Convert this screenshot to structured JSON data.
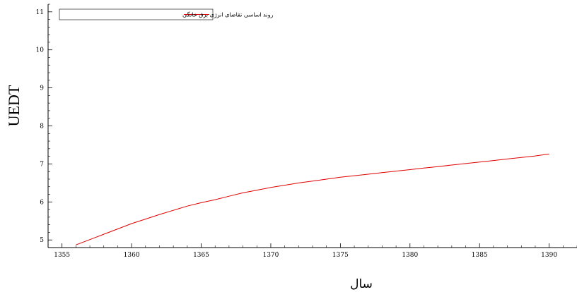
{
  "chart_data": {
    "type": "line",
    "xlabel": "سال",
    "ylabel": "UEDT",
    "xlim": [
      1354,
      1392
    ],
    "ylim": [
      4.8,
      11.2
    ],
    "xticks": [
      "1355",
      "1360",
      "1365",
      "1370",
      "1375",
      "1380",
      "1385",
      "1390"
    ],
    "yticks": [
      "5",
      "6",
      "7",
      "8",
      "9",
      "10",
      "11"
    ],
    "legend_position": "top-left",
    "grid": false,
    "series": [
      {
        "name": "روند اساسی تقاضای انرژی برق خانگی",
        "color": "#e00000",
        "x": [
          1356,
          1357,
          1358,
          1359,
          1360,
          1361,
          1362,
          1363,
          1364,
          1365,
          1366,
          1367,
          1368,
          1369,
          1370,
          1371,
          1372,
          1373,
          1374,
          1375,
          1376,
          1377,
          1378,
          1379,
          1380,
          1381,
          1382,
          1383,
          1384,
          1385,
          1386,
          1387,
          1388,
          1389,
          1390
        ],
        "values": [
          4.87,
          5.01,
          5.15,
          5.29,
          5.43,
          5.55,
          5.67,
          5.78,
          5.89,
          5.98,
          6.06,
          6.15,
          6.24,
          6.31,
          6.38,
          6.44,
          6.5,
          6.55,
          6.6,
          6.65,
          6.69,
          6.73,
          6.77,
          6.81,
          6.85,
          6.89,
          6.93,
          6.97,
          7.01,
          7.05,
          7.09,
          7.13,
          7.17,
          7.21,
          7.26
        ]
      }
    ]
  }
}
